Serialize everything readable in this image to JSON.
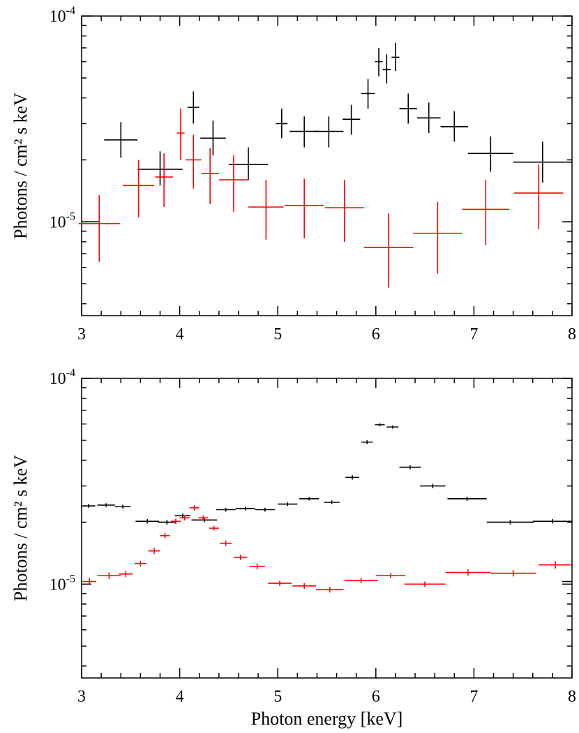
{
  "chart_data": [
    {
      "type": "scatter",
      "name": "top-panel",
      "ylabel": "Photons / cm² s keV",
      "xlabel": "",
      "xlim": [
        3,
        8
      ],
      "ylim": [
        3.5e-06,
        0.0001
      ],
      "yscale": "log",
      "xticks": [
        "3",
        "4",
        "5",
        "6",
        "7",
        "8"
      ],
      "yticks": [
        {
          "value": 0.0001,
          "base": "10",
          "exp": "-4"
        },
        {
          "value": 1e-05,
          "base": "10",
          "exp": "-5"
        }
      ],
      "series": [
        {
          "name": "black",
          "color": "#000000",
          "points": [
            {
              "x": 3.09,
              "xerr": 0.09,
              "y": 1e-05,
              "ylo": 1e-05,
              "yhi": 1e-05
            },
            {
              "x": 3.4,
              "xerr": 0.17,
              "y": 2.5e-05,
              "ylo": 2.05e-05,
              "yhi": 3.05e-05
            },
            {
              "x": 3.8,
              "xerr": 0.23,
              "y": 1.8e-05,
              "ylo": 1.5e-05,
              "yhi": 2.2e-05
            },
            {
              "x": 4.14,
              "xerr": 0.06,
              "y": 3.6e-05,
              "ylo": 3e-05,
              "yhi": 4.3e-05
            },
            {
              "x": 4.34,
              "xerr": 0.13,
              "y": 2.55e-05,
              "ylo": 2.1e-05,
              "yhi": 3.1e-05
            },
            {
              "x": 4.7,
              "xerr": 0.2,
              "y": 1.9e-05,
              "ylo": 1.6e-05,
              "yhi": 2.3e-05
            },
            {
              "x": 5.04,
              "xerr": 0.06,
              "y": 3e-05,
              "ylo": 2.55e-05,
              "yhi": 3.55e-05
            },
            {
              "x": 5.27,
              "xerr": 0.15,
              "y": 2.75e-05,
              "ylo": 2.3e-05,
              "yhi": 3.25e-05
            },
            {
              "x": 5.52,
              "xerr": 0.15,
              "y": 2.75e-05,
              "ylo": 2.3e-05,
              "yhi": 3.25e-05
            },
            {
              "x": 5.75,
              "xerr": 0.09,
              "y": 3.15e-05,
              "ylo": 2.65e-05,
              "yhi": 3.7e-05
            },
            {
              "x": 5.92,
              "xerr": 0.07,
              "y": 4.2e-05,
              "ylo": 3.55e-05,
              "yhi": 4.95e-05
            },
            {
              "x": 6.03,
              "xerr": 0.04,
              "y": 6e-05,
              "ylo": 5.1e-05,
              "yhi": 7e-05
            },
            {
              "x": 6.11,
              "xerr": 0.04,
              "y": 5.5e-05,
              "ylo": 4.7e-05,
              "yhi": 6.5e-05
            },
            {
              "x": 6.2,
              "xerr": 0.04,
              "y": 6.3e-05,
              "ylo": 5.4e-05,
              "yhi": 7.4e-05
            },
            {
              "x": 6.33,
              "xerr": 0.09,
              "y": 3.55e-05,
              "ylo": 3e-05,
              "yhi": 4.2e-05
            },
            {
              "x": 6.54,
              "xerr": 0.12,
              "y": 3.2e-05,
              "ylo": 2.7e-05,
              "yhi": 3.8e-05
            },
            {
              "x": 6.8,
              "xerr": 0.14,
              "y": 2.9e-05,
              "ylo": 2.45e-05,
              "yhi": 3.45e-05
            },
            {
              "x": 7.17,
              "xerr": 0.23,
              "y": 2.15e-05,
              "ylo": 1.75e-05,
              "yhi": 2.6e-05
            },
            {
              "x": 7.7,
              "xerr": 0.3,
              "y": 1.95e-05,
              "ylo": 1.55e-05,
              "yhi": 2.45e-05
            },
            {
              "x": 7.95,
              "xerr": 0.05,
              "y": 1e-05,
              "ylo": 1e-05,
              "yhi": 1e-05
            }
          ]
        },
        {
          "name": "red",
          "color": "#ff0000",
          "points": [
            {
              "x": 3.18,
              "xerr": 0.21,
              "y": 9.8e-06,
              "ylo": 6.4e-06,
              "yhi": 1.35e-05
            },
            {
              "x": 3.58,
              "xerr": 0.16,
              "y": 1.5e-05,
              "ylo": 1.05e-05,
              "yhi": 2e-05
            },
            {
              "x": 3.84,
              "xerr": 0.09,
              "y": 1.65e-05,
              "ylo": 1.18e-05,
              "yhi": 2.15e-05
            },
            {
              "x": 4.01,
              "xerr": 0.04,
              "y": 2.7e-05,
              "ylo": 2e-05,
              "yhi": 3.55e-05
            },
            {
              "x": 4.14,
              "xerr": 0.08,
              "y": 2e-05,
              "ylo": 1.45e-05,
              "yhi": 2.65e-05
            },
            {
              "x": 4.31,
              "xerr": 0.09,
              "y": 1.72e-05,
              "ylo": 1.22e-05,
              "yhi": 2.28e-05
            },
            {
              "x": 4.55,
              "xerr": 0.15,
              "y": 1.6e-05,
              "ylo": 1.12e-05,
              "yhi": 2.1e-05
            },
            {
              "x": 4.88,
              "xerr": 0.18,
              "y": 1.18e-05,
              "ylo": 8.2e-06,
              "yhi": 1.6e-05
            },
            {
              "x": 5.27,
              "xerr": 0.2,
              "y": 1.2e-05,
              "ylo": 8.3e-06,
              "yhi": 1.62e-05
            },
            {
              "x": 5.68,
              "xerr": 0.2,
              "y": 1.17e-05,
              "ylo": 8e-06,
              "yhi": 1.6e-05
            },
            {
              "x": 6.13,
              "xerr": 0.25,
              "y": 7.5e-06,
              "ylo": 4.8e-06,
              "yhi": 1.1e-05
            },
            {
              "x": 6.63,
              "xerr": 0.25,
              "y": 8.8e-06,
              "ylo": 5.6e-06,
              "yhi": 1.25e-05
            },
            {
              "x": 7.12,
              "xerr": 0.24,
              "y": 1.15e-05,
              "ylo": 7.7e-06,
              "yhi": 1.6e-05
            },
            {
              "x": 7.66,
              "xerr": 0.25,
              "y": 1.38e-05,
              "ylo": 9.2e-06,
              "yhi": 1.9e-05
            }
          ]
        }
      ]
    },
    {
      "type": "scatter",
      "name": "bottom-panel",
      "ylabel": "Photons / cm² s keV",
      "xlabel": "Photon energy [keV]",
      "xlim": [
        3,
        8
      ],
      "ylim": [
        3.5e-06,
        0.0001
      ],
      "yscale": "log",
      "xticks": [
        "3",
        "4",
        "5",
        "6",
        "7",
        "8"
      ],
      "yticks": [
        {
          "value": 0.0001,
          "base": "10",
          "exp": "-4"
        },
        {
          "value": 1e-05,
          "base": "10",
          "exp": "-5"
        }
      ],
      "series": [
        {
          "name": "black",
          "color": "#000000",
          "points": [
            {
              "x": 3.07,
              "xerr": 0.07,
              "y": 2.4e-05,
              "ylo": 2.35e-05,
              "yhi": 2.45e-05
            },
            {
              "x": 3.25,
              "xerr": 0.09,
              "y": 2.42e-05,
              "ylo": 2.37e-05,
              "yhi": 2.47e-05
            },
            {
              "x": 3.42,
              "xerr": 0.08,
              "y": 2.38e-05,
              "ylo": 2.33e-05,
              "yhi": 2.43e-05
            },
            {
              "x": 3.67,
              "xerr": 0.12,
              "y": 2.02e-05,
              "ylo": 1.97e-05,
              "yhi": 2.07e-05
            },
            {
              "x": 3.87,
              "xerr": 0.09,
              "y": 2e-05,
              "ylo": 1.95e-05,
              "yhi": 2.05e-05
            },
            {
              "x": 4.03,
              "xerr": 0.08,
              "y": 2.15e-05,
              "ylo": 2.1e-05,
              "yhi": 2.2e-05
            },
            {
              "x": 4.25,
              "xerr": 0.13,
              "y": 2.05e-05,
              "ylo": 2e-05,
              "yhi": 2.1e-05
            },
            {
              "x": 4.47,
              "xerr": 0.1,
              "y": 2.3e-05,
              "ylo": 2.25e-05,
              "yhi": 2.35e-05
            },
            {
              "x": 4.67,
              "xerr": 0.1,
              "y": 2.33e-05,
              "ylo": 2.28e-05,
              "yhi": 2.38e-05
            },
            {
              "x": 4.87,
              "xerr": 0.1,
              "y": 2.3e-05,
              "ylo": 2.25e-05,
              "yhi": 2.35e-05
            },
            {
              "x": 5.1,
              "xerr": 0.1,
              "y": 2.45e-05,
              "ylo": 2.4e-05,
              "yhi": 2.5e-05
            },
            {
              "x": 5.32,
              "xerr": 0.1,
              "y": 2.6e-05,
              "ylo": 2.55e-05,
              "yhi": 2.65e-05
            },
            {
              "x": 5.55,
              "xerr": 0.08,
              "y": 2.5e-05,
              "ylo": 2.45e-05,
              "yhi": 2.55e-05
            },
            {
              "x": 5.76,
              "xerr": 0.07,
              "y": 3.3e-05,
              "ylo": 3.22e-05,
              "yhi": 3.38e-05
            },
            {
              "x": 5.91,
              "xerr": 0.06,
              "y": 4.9e-05,
              "ylo": 4.8e-05,
              "yhi": 5e-05
            },
            {
              "x": 6.04,
              "xerr": 0.05,
              "y": 5.95e-05,
              "ylo": 5.85e-05,
              "yhi": 6.05e-05
            },
            {
              "x": 6.17,
              "xerr": 0.06,
              "y": 5.8e-05,
              "ylo": 5.7e-05,
              "yhi": 5.9e-05
            },
            {
              "x": 6.35,
              "xerr": 0.11,
              "y": 3.7e-05,
              "ylo": 3.62e-05,
              "yhi": 3.78e-05
            },
            {
              "x": 6.58,
              "xerr": 0.13,
              "y": 3e-05,
              "ylo": 2.93e-05,
              "yhi": 3.07e-05
            },
            {
              "x": 6.93,
              "xerr": 0.2,
              "y": 2.6e-05,
              "ylo": 2.54e-05,
              "yhi": 2.66e-05
            },
            {
              "x": 7.37,
              "xerr": 0.24,
              "y": 2e-05,
              "ylo": 1.95e-05,
              "yhi": 2.05e-05
            },
            {
              "x": 7.8,
              "xerr": 0.2,
              "y": 2.02e-05,
              "ylo": 1.97e-05,
              "yhi": 2.07e-05
            },
            {
              "x": 7.95,
              "xerr": 0.05,
              "y": 1.03e-05,
              "ylo": 1.03e-05,
              "yhi": 1.03e-05
            }
          ]
        },
        {
          "name": "red",
          "color": "#ff0000",
          "points": [
            {
              "x": 3.08,
              "xerr": 0.07,
              "y": 1.03e-05,
              "ylo": 9.9e-06,
              "yhi": 1.07e-05
            },
            {
              "x": 3.28,
              "xerr": 0.12,
              "y": 1.1e-05,
              "ylo": 1.06e-05,
              "yhi": 1.14e-05
            },
            {
              "x": 3.45,
              "xerr": 0.07,
              "y": 1.12e-05,
              "ylo": 1.08e-05,
              "yhi": 1.16e-05
            },
            {
              "x": 3.6,
              "xerr": 0.06,
              "y": 1.26e-05,
              "ylo": 1.22e-05,
              "yhi": 1.3e-05
            },
            {
              "x": 3.74,
              "xerr": 0.06,
              "y": 1.45e-05,
              "ylo": 1.4e-05,
              "yhi": 1.5e-05
            },
            {
              "x": 3.85,
              "xerr": 0.05,
              "y": 1.72e-05,
              "ylo": 1.67e-05,
              "yhi": 1.77e-05
            },
            {
              "x": 3.96,
              "xerr": 0.05,
              "y": 2.02e-05,
              "ylo": 1.96e-05,
              "yhi": 2.08e-05
            },
            {
              "x": 4.05,
              "xerr": 0.05,
              "y": 2.1e-05,
              "ylo": 2.04e-05,
              "yhi": 2.16e-05
            },
            {
              "x": 4.15,
              "xerr": 0.05,
              "y": 2.35e-05,
              "ylo": 2.28e-05,
              "yhi": 2.42e-05
            },
            {
              "x": 4.24,
              "xerr": 0.05,
              "y": 2.1e-05,
              "ylo": 2.04e-05,
              "yhi": 2.16e-05
            },
            {
              "x": 4.35,
              "xerr": 0.05,
              "y": 1.87e-05,
              "ylo": 1.82e-05,
              "yhi": 1.92e-05
            },
            {
              "x": 4.47,
              "xerr": 0.06,
              "y": 1.58e-05,
              "ylo": 1.53e-05,
              "yhi": 1.63e-05
            },
            {
              "x": 4.62,
              "xerr": 0.07,
              "y": 1.35e-05,
              "ylo": 1.31e-05,
              "yhi": 1.39e-05
            },
            {
              "x": 4.79,
              "xerr": 0.08,
              "y": 1.22e-05,
              "ylo": 1.18e-05,
              "yhi": 1.26e-05
            },
            {
              "x": 5.02,
              "xerr": 0.12,
              "y": 1.01e-05,
              "ylo": 9.8e-06,
              "yhi": 1.04e-05
            },
            {
              "x": 5.27,
              "xerr": 0.12,
              "y": 9.8e-06,
              "ylo": 9.5e-06,
              "yhi": 1.01e-05
            },
            {
              "x": 5.53,
              "xerr": 0.14,
              "y": 9.4e-06,
              "ylo": 9.1e-06,
              "yhi": 9.7e-06
            },
            {
              "x": 5.85,
              "xerr": 0.17,
              "y": 1.04e-05,
              "ylo": 1.01e-05,
              "yhi": 1.07e-05
            },
            {
              "x": 6.15,
              "xerr": 0.15,
              "y": 1.1e-05,
              "ylo": 1.07e-05,
              "yhi": 1.13e-05
            },
            {
              "x": 6.5,
              "xerr": 0.21,
              "y": 1e-05,
              "ylo": 9.7e-06,
              "yhi": 1.03e-05
            },
            {
              "x": 6.94,
              "xerr": 0.23,
              "y": 1.14e-05,
              "ylo": 1.1e-05,
              "yhi": 1.18e-05
            },
            {
              "x": 7.4,
              "xerr": 0.23,
              "y": 1.13e-05,
              "ylo": 1.09e-05,
              "yhi": 1.17e-05
            },
            {
              "x": 7.83,
              "xerr": 0.17,
              "y": 1.24e-05,
              "ylo": 1.19e-05,
              "yhi": 1.29e-05
            }
          ]
        }
      ]
    }
  ]
}
